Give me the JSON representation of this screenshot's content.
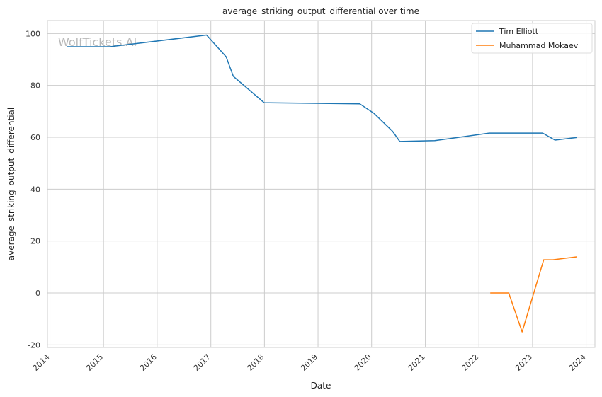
{
  "chart_data": {
    "type": "line",
    "title": "average_striking_output_differential over time",
    "xlabel": "Date",
    "ylabel": "average_striking_output_differential",
    "watermark": "WolfTickets.AI",
    "ylim": [
      -21,
      105
    ],
    "xlim": [
      "2013-12-15",
      "2024-03-01"
    ],
    "yticks": [
      -20,
      0,
      20,
      40,
      60,
      80,
      100
    ],
    "xticks": [
      "2014",
      "2015",
      "2016",
      "2017",
      "2018",
      "2019",
      "2020",
      "2021",
      "2022",
      "2023",
      "2024"
    ],
    "grid": true,
    "legend_position": "top-right",
    "series": [
      {
        "name": "Tim Elliott",
        "color": "#1f77b4",
        "points": [
          {
            "x": "2014-04-26",
            "y": 94.9
          },
          {
            "x": "2015-02-14",
            "y": 94.9
          },
          {
            "x": "2016-12-03",
            "y": 99.4
          },
          {
            "x": "2017-04-15",
            "y": 91.0
          },
          {
            "x": "2017-06-03",
            "y": 83.5
          },
          {
            "x": "2017-12-30",
            "y": 73.3
          },
          {
            "x": "2019-10-12",
            "y": 72.9
          },
          {
            "x": "2020-01-18",
            "y": 69.2
          },
          {
            "x": "2020-05-23",
            "y": 62.3
          },
          {
            "x": "2020-07-11",
            "y": 58.4
          },
          {
            "x": "2021-03-06",
            "y": 58.7
          },
          {
            "x": "2022-03-12",
            "y": 61.6
          },
          {
            "x": "2023-03-11",
            "y": 61.6
          },
          {
            "x": "2023-06-03",
            "y": 58.9
          },
          {
            "x": "2023-10-28",
            "y": 59.9
          }
        ]
      },
      {
        "name": "Muhammad Mokaev",
        "color": "#ff7f0e",
        "points": [
          {
            "x": "2022-03-19",
            "y": 0.0
          },
          {
            "x": "2022-07-23",
            "y": 0.0
          },
          {
            "x": "2022-10-22",
            "y": -15.0
          },
          {
            "x": "2023-03-18",
            "y": 12.8
          },
          {
            "x": "2023-05-20",
            "y": 12.8
          },
          {
            "x": "2023-10-28",
            "y": 13.9
          }
        ]
      }
    ]
  }
}
